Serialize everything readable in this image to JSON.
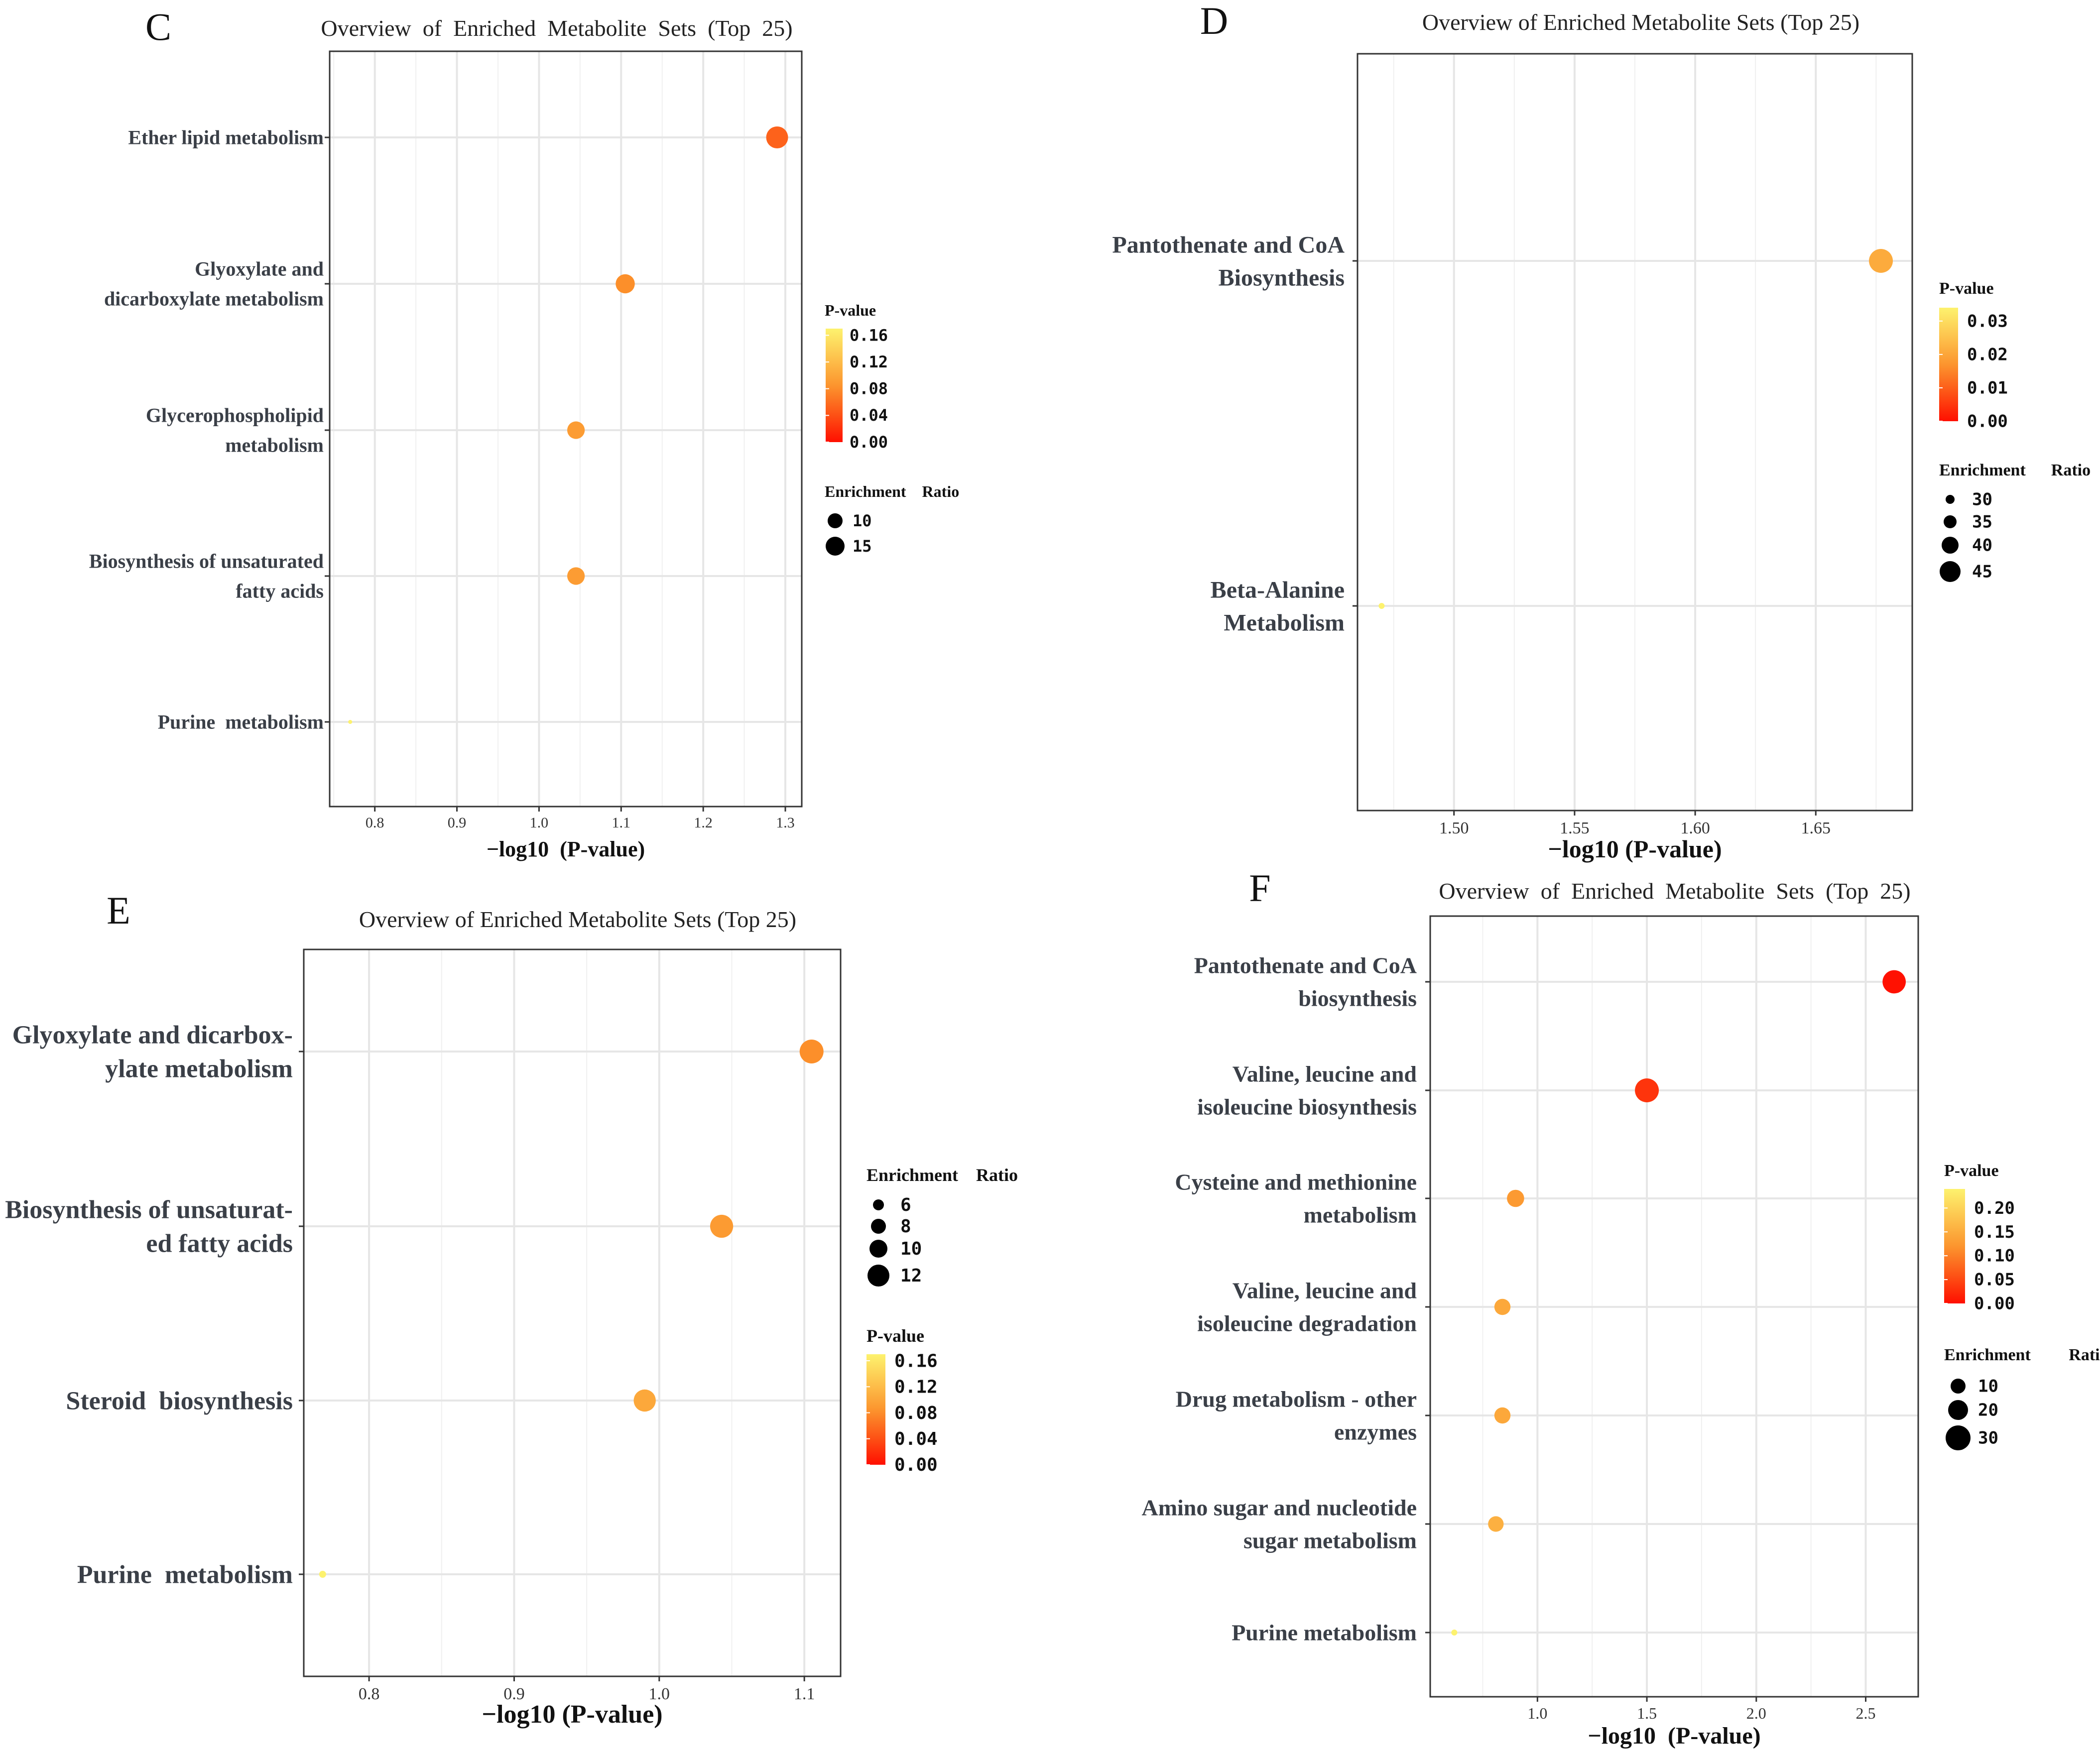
{
  "chart_data": [
    {
      "panel": "C",
      "type": "scatter",
      "title": "Overview  of  Enriched  Metabolite  Sets  (Top  25)",
      "xlabel": "−log10  (P-value)",
      "xlim": [
        0.745,
        1.32
      ],
      "xticks": [
        "0.8",
        "0.9",
        "1.0",
        "1.1",
        "1.2",
        "1.3"
      ],
      "categories": [
        [
          "Ether lipid metabolism"
        ],
        [
          "Glyoxylate and",
          "dicarboxylate metabolism"
        ],
        [
          "Glycerophospholipid",
          "metabolism"
        ],
        [
          "Biosynthesis of unsaturated",
          "fatty acids"
        ],
        [
          "Purine  metabolism"
        ]
      ],
      "x": [
        1.29,
        1.105,
        1.045,
        1.045,
        0.77
      ],
      "pvalue": [
        0.051,
        0.079,
        0.091,
        0.091,
        0.17
      ],
      "enrichment_ratio": [
        17,
        13,
        11,
        11,
        3
      ],
      "pvalue_legend": {
        "title": "P-value",
        "ticks": [
          "0.16",
          "0.12",
          "0.08",
          "0.04",
          "0.00"
        ],
        "max": 0.17
      },
      "size_legend": {
        "title": "Enrichment    Ratio",
        "ticks": [
          "10",
          "15"
        ]
      }
    },
    {
      "panel": "D",
      "type": "scatter",
      "title": "Overview of Enriched Metabolite Sets (Top 25)",
      "xlabel": "−log10 (P-value)",
      "xlim": [
        1.46,
        1.69
      ],
      "xticks": [
        "1.50",
        "1.55",
        "1.60",
        "1.65"
      ],
      "categories": [
        [
          "Pantothenate and CoA",
          "Biosynthesis"
        ],
        [
          "Beta-Alanine",
          "Metabolism"
        ]
      ],
      "x": [
        1.677,
        1.47
      ],
      "pvalue": [
        0.021,
        0.034
      ],
      "enrichment_ratio": [
        48,
        25
      ],
      "pvalue_legend": {
        "title": "P-value",
        "ticks": [
          "0.03",
          "0.02",
          "0.01",
          "0.00"
        ],
        "max": 0.034
      },
      "size_legend": {
        "title": "Enrichment      Ratio",
        "ticks": [
          "30",
          "35",
          "40",
          "45"
        ]
      }
    },
    {
      "panel": "E",
      "type": "scatter",
      "title": "Overview of Enriched Metabolite Sets (Top 25)",
      "xlabel": "−log10 (P-value)",
      "xlim": [
        0.755,
        1.125
      ],
      "xticks": [
        "0.8",
        "0.9",
        "1.0",
        "1.1"
      ],
      "categories": [
        [
          "Glyoxylate and dicarbox-",
          "ylate metabolism"
        ],
        [
          "Biosynthesis of unsaturat-",
          "ed fatty acids"
        ],
        [
          "Steroid  biosynthesis"
        ],
        [
          "Purine  metabolism"
        ]
      ],
      "x": [
        1.105,
        1.043,
        0.99,
        0.768
      ],
      "pvalue": [
        0.079,
        0.09,
        0.102,
        0.17
      ],
      "enrichment_ratio": [
        13,
        12,
        11,
        3
      ],
      "pvalue_legend": {
        "title": "P-value",
        "ticks": [
          "0.16",
          "0.12",
          "0.08",
          "0.04",
          "0.00"
        ],
        "max": 0.17
      },
      "size_legend": {
        "title": "Enrichment    Ratio",
        "ticks": [
          "6",
          "8",
          "10",
          "12"
        ]
      }
    },
    {
      "panel": "F",
      "type": "scatter",
      "title": "Overview  of  Enriched  Metabolite  Sets  (Top  25)",
      "xlabel": "−log10  (P-value)",
      "xlim": [
        0.51,
        2.74
      ],
      "xticks": [
        "1.0",
        "1.5",
        "2.0",
        "2.5"
      ],
      "categories": [
        [
          "Pantothenate and CoA",
          "biosynthesis"
        ],
        [
          "Valine, leucine and",
          "isoleucine biosynthesis"
        ],
        [
          "Cysteine and methionine",
          "metabolism"
        ],
        [
          "Valine, leucine and",
          "isoleucine degradation"
        ],
        [
          "Drug metabolism - other",
          "enzymes"
        ],
        [
          "Amino sugar and nucleotide",
          "sugar metabolism"
        ],
        [
          "Purine metabolism"
        ]
      ],
      "x": [
        2.63,
        1.5,
        0.9,
        0.84,
        0.84,
        0.81,
        0.62
      ],
      "pvalue": [
        0.002,
        0.032,
        0.126,
        0.144,
        0.144,
        0.155,
        0.24
      ],
      "enrichment_ratio": [
        30,
        32,
        15,
        13,
        13,
        12,
        4
      ],
      "pvalue_legend": {
        "title": "P-value",
        "ticks": [
          "0.20",
          "0.15",
          "0.10",
          "0.05",
          "0.00"
        ],
        "max": 0.24
      },
      "size_legend": {
        "title": "Enrichment         Ratio",
        "ticks": [
          "10",
          "20",
          "30"
        ]
      }
    }
  ]
}
